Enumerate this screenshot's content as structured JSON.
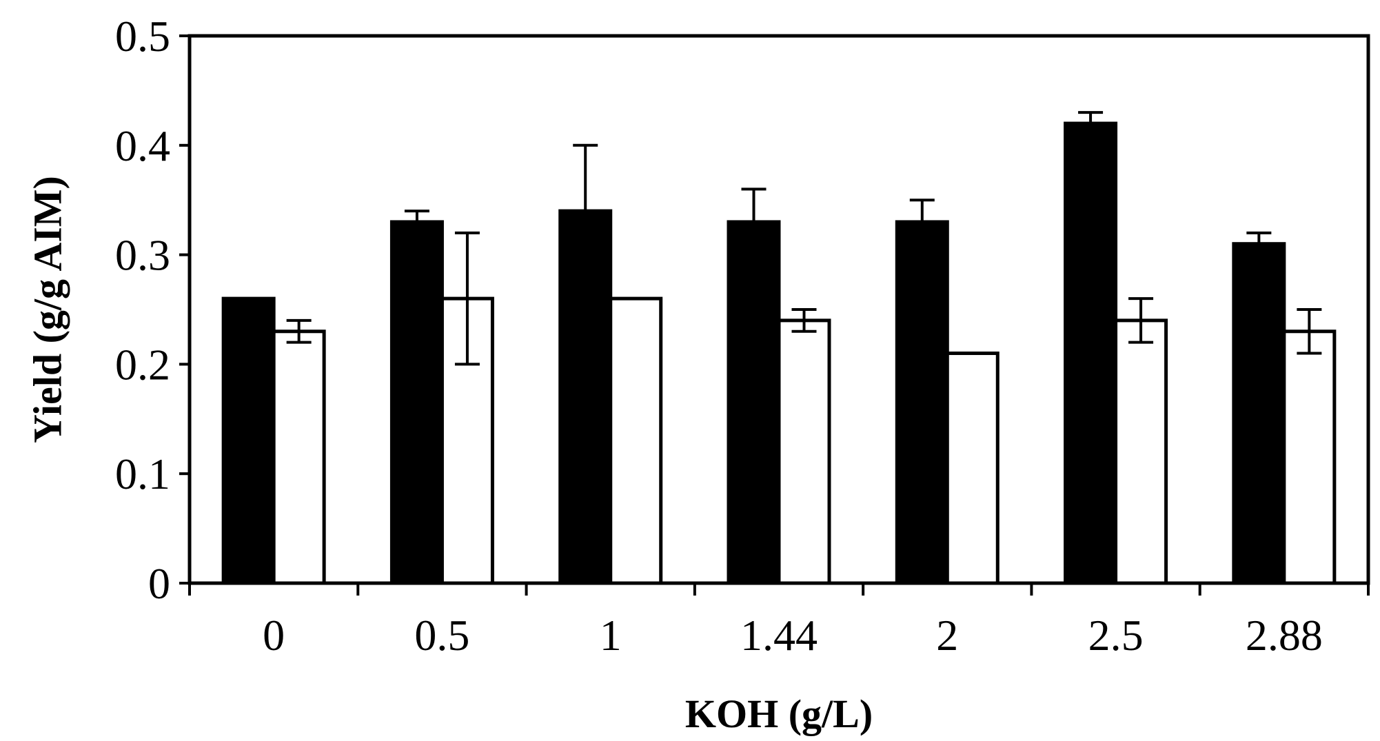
{
  "chart_data": {
    "type": "bar",
    "title": "",
    "xlabel": "KOH (g/L)",
    "ylabel": "Yield (g/g AIM)",
    "categories": [
      "0",
      "0.5",
      "1",
      "1.44",
      "2",
      "2.5",
      "2.88"
    ],
    "ylim": [
      0,
      0.5
    ],
    "yticks": [
      "0",
      "0.1",
      "0.2",
      "0.3",
      "0.4",
      "0.5"
    ],
    "grid": false,
    "legend": "none",
    "series": [
      {
        "name": "black",
        "color": "#000000",
        "values": [
          0.26,
          0.33,
          0.34,
          0.33,
          0.33,
          0.42,
          0.31
        ],
        "errors": [
          0,
          0.01,
          0.06,
          0.03,
          0.02,
          0.01,
          0.01
        ]
      },
      {
        "name": "white",
        "color": "#ffffff",
        "values": [
          0.23,
          0.26,
          0.26,
          0.24,
          0.21,
          0.24,
          0.23
        ],
        "errors": [
          0.01,
          0.06,
          0,
          0.01,
          0,
          0.02,
          0.02
        ]
      }
    ]
  }
}
